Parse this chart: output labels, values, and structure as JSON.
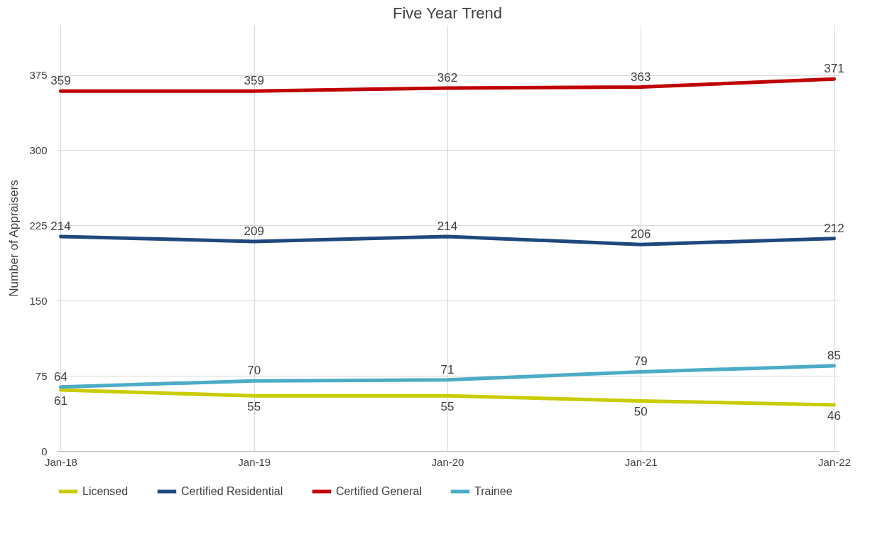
{
  "chart_data": {
    "type": "line",
    "title": "Five Year Trend",
    "ylabel": "Number of Appraisers",
    "categories": [
      "Jan-18",
      "Jan-19",
      "Jan-20",
      "Jan-21",
      "Jan-22"
    ],
    "series": [
      {
        "name": "Licensed",
        "color": "#c9cc00",
        "values": [
          61,
          55,
          55,
          50,
          46
        ]
      },
      {
        "name": "Certified Residential",
        "color": "#1f497d",
        "values": [
          214,
          209,
          214,
          206,
          212
        ]
      },
      {
        "name": "Certified General",
        "color": "#c00000",
        "values": [
          359,
          359,
          362,
          363,
          371
        ]
      },
      {
        "name": "Trainee",
        "color": "#4bacc6",
        "values": [
          64,
          70,
          71,
          79,
          85
        ]
      }
    ],
    "ylim": [
      0,
      425
    ],
    "yticks": [
      0,
      75,
      150,
      225,
      300,
      375
    ],
    "grid": true,
    "legend": "bottom",
    "data_labels": true,
    "marker": "none",
    "line_style": "solid"
  }
}
